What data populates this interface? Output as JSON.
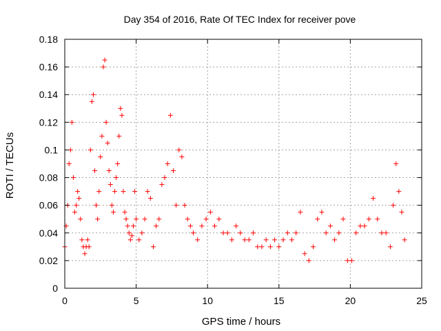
{
  "chart_data": {
    "type": "scatter",
    "title": "Day 354 of 2016, Rate Of TEC Index for receiver pove",
    "xlabel": "GPS time / hours",
    "ylabel": "ROTI / TECUs",
    "xlim": [
      0,
      25
    ],
    "ylim": [
      0,
      0.18
    ],
    "xticks": [
      0,
      5,
      10,
      15,
      20,
      25
    ],
    "xtick_labels": [
      "0",
      "5",
      "10",
      "15",
      "20",
      "25"
    ],
    "yticks": [
      0,
      0.02,
      0.04,
      0.06,
      0.08,
      0.1,
      0.12,
      0.14,
      0.16,
      0.18
    ],
    "ytick_labels": [
      "0",
      "0.02",
      "0.04",
      "0.06",
      "0.08",
      "0.1",
      "0.12",
      "0.14",
      "0.16",
      "0.18"
    ],
    "grid": true,
    "marker": "+",
    "color": "#ff0000",
    "series": [
      {
        "name": "ROTI",
        "x": [
          0.0,
          0.1,
          0.2,
          0.3,
          0.4,
          0.5,
          0.6,
          0.7,
          0.8,
          0.9,
          1.0,
          1.1,
          1.2,
          1.3,
          1.4,
          1.5,
          1.6,
          1.7,
          1.8,
          1.9,
          2.0,
          2.1,
          2.2,
          2.3,
          2.4,
          2.5,
          2.6,
          2.7,
          2.8,
          2.9,
          3.0,
          3.1,
          3.2,
          3.3,
          3.4,
          3.5,
          3.6,
          3.7,
          3.8,
          3.9,
          4.0,
          4.1,
          4.2,
          4.3,
          4.4,
          4.5,
          4.6,
          4.7,
          4.8,
          4.9,
          5.0,
          5.2,
          5.4,
          5.6,
          5.8,
          6.0,
          6.2,
          6.4,
          6.6,
          6.8,
          7.0,
          7.2,
          7.4,
          7.6,
          7.8,
          8.0,
          8.2,
          8.4,
          8.6,
          8.8,
          9.0,
          9.3,
          9.6,
          9.9,
          10.2,
          10.5,
          10.8,
          11.1,
          11.4,
          11.7,
          12.0,
          12.3,
          12.6,
          12.9,
          13.2,
          13.5,
          13.8,
          14.1,
          14.4,
          14.7,
          15.0,
          15.3,
          15.6,
          15.9,
          16.2,
          16.5,
          16.8,
          17.1,
          17.4,
          17.7,
          18.0,
          18.3,
          18.6,
          18.9,
          19.2,
          19.5,
          19.8,
          20.1,
          20.4,
          20.7,
          21.0,
          21.3,
          21.6,
          21.9,
          22.2,
          22.5,
          22.8,
          23.0,
          23.2,
          23.4,
          23.6,
          23.8
        ],
        "y": [
          0.03,
          0.045,
          0.06,
          0.09,
          0.1,
          0.12,
          0.08,
          0.055,
          0.06,
          0.07,
          0.065,
          0.05,
          0.035,
          0.03,
          0.025,
          0.03,
          0.035,
          0.03,
          0.1,
          0.135,
          0.14,
          0.085,
          0.06,
          0.05,
          0.07,
          0.095,
          0.11,
          0.16,
          0.165,
          0.12,
          0.105,
          0.085,
          0.075,
          0.06,
          0.055,
          0.07,
          0.08,
          0.09,
          0.11,
          0.13,
          0.125,
          0.07,
          0.055,
          0.05,
          0.045,
          0.04,
          0.035,
          0.038,
          0.045,
          0.07,
          0.05,
          0.035,
          0.04,
          0.05,
          0.07,
          0.065,
          0.03,
          0.045,
          0.05,
          0.075,
          0.08,
          0.09,
          0.125,
          0.085,
          0.06,
          0.1,
          0.095,
          0.06,
          0.05,
          0.045,
          0.04,
          0.035,
          0.045,
          0.05,
          0.055,
          0.045,
          0.05,
          0.04,
          0.04,
          0.035,
          0.045,
          0.04,
          0.035,
          0.035,
          0.04,
          0.03,
          0.03,
          0.035,
          0.03,
          0.035,
          0.03,
          0.035,
          0.04,
          0.035,
          0.04,
          0.055,
          0.025,
          0.02,
          0.03,
          0.05,
          0.055,
          0.04,
          0.045,
          0.035,
          0.04,
          0.05,
          0.02,
          0.02,
          0.04,
          0.045,
          0.045,
          0.05,
          0.065,
          0.05,
          0.04,
          0.04,
          0.03,
          0.06,
          0.09,
          0.07,
          0.055,
          0.035
        ]
      }
    ]
  }
}
